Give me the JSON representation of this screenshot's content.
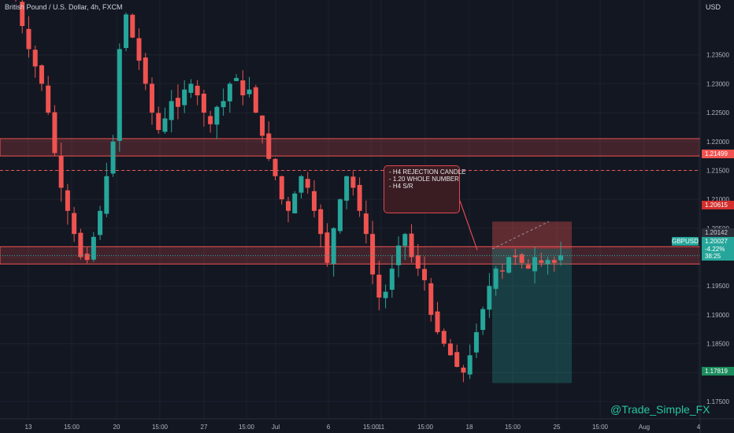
{
  "header": {
    "title": "British Pound / U.S. Dollar, 4h, FXCM",
    "currency": "USD"
  },
  "watermark": "@Trade_Simple_FX",
  "annotation": {
    "lines": [
      "- H4 REJECTION CANDLE",
      "- 1.20 WHOLE NUMBER",
      "- H4 S/R"
    ]
  },
  "symbol_label": "GBPUSD",
  "price_tags": {
    "dashed_level": "1.21499",
    "stop": "1.20615",
    "entry": "1.20142",
    "last_price": "1.20027",
    "change": "-4.22%",
    "countdown": "38:25",
    "target": "1.17819"
  },
  "colors": {
    "bull": "#26a69a",
    "bear": "#ef5350",
    "background": "#131722",
    "zone": "#ef5350"
  },
  "chart_data": {
    "type": "candlestick",
    "title": "British Pound / U.S. Dollar, 4h, FXCM",
    "y_axis": {
      "label": "USD",
      "ylim": [
        1.172,
        1.2445
      ],
      "ticks": [
        "1.23500",
        "1.23000",
        "1.22500",
        "1.22000",
        "1.21500",
        "1.21000",
        "1.20500",
        "1.20000",
        "1.19500",
        "1.19000",
        "1.18500",
        "1.18000",
        "1.17500"
      ]
    },
    "x_axis": {
      "ticks": [
        "13",
        "15:00",
        "20",
        "15:00",
        "27",
        "15:00",
        "Jul",
        "6",
        "15:00",
        "11",
        "15:00",
        "18",
        "15:00",
        "25",
        "15:00",
        "Aug",
        "4"
      ]
    },
    "zones": [
      {
        "name": "resistance",
        "from": 1.2175,
        "to": 1.2205
      },
      {
        "name": "support_resistance",
        "from": 1.1988,
        "to": 1.2018
      }
    ],
    "levels": [
      {
        "name": "dashed",
        "value": 1.21499
      }
    ],
    "position": {
      "type": "short",
      "stop": 1.20615,
      "entry": 1.20142,
      "target": 1.17819
    },
    "last_price": 1.20027,
    "closes": [
      1.2445,
      1.24,
      1.236,
      1.233,
      1.23,
      1.225,
      1.218,
      1.212,
      1.208,
      1.204,
      1.2,
      1.1995,
      1.2035,
      1.208,
      1.214,
      1.22,
      1.236,
      1.242,
      1.238,
      1.234,
      1.23,
      1.225,
      1.222,
      1.224,
      1.227,
      1.226,
      1.229,
      1.23,
      1.228,
      1.225,
      1.223,
      1.226,
      1.227,
      1.23,
      1.231,
      1.228,
      1.229,
      1.225,
      1.221,
      1.217,
      1.214,
      1.21,
      1.208,
      1.211,
      1.214,
      1.212,
      1.208,
      1.204,
      1.199,
      1.205,
      1.21,
      1.214,
      1.212,
      1.208,
      1.204,
      1.197,
      1.193,
      1.194,
      1.198,
      1.202,
      1.204,
      1.2,
      1.198,
      1.196,
      1.19,
      1.187,
      1.185,
      1.183,
      1.181,
      1.18,
      1.183,
      1.187,
      1.191,
      1.195,
      1.198,
      1.1975,
      1.2,
      1.2,
      1.199,
      1.198,
      1.2,
      1.199,
      1.1995,
      1.199,
      1.2003
    ]
  }
}
